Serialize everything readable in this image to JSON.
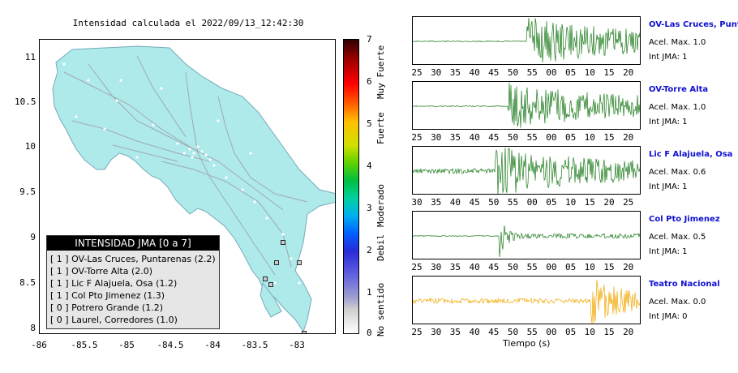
{
  "map": {
    "title": "Intensidad calculada el 2022/09/13_12:42:30",
    "y_ticks": [
      "11",
      "10.5",
      "10",
      "9.5",
      "9",
      "8.5",
      "8"
    ],
    "x_ticks": [
      "-86",
      "-85.5",
      "-85",
      "-84.5",
      "-84",
      "-83.5",
      "-83"
    ],
    "land_color": "#aeeaea",
    "road_color": "#a0a8b0"
  },
  "legend": {
    "header": "INTENSIDAD JMA [0 a 7]",
    "items": [
      "[ 1 ]  OV-Las Cruces, Puntarenas (2.2)",
      "[ 1 ]  OV-Torre Alta (2.0)",
      "[ 1 ]  Lic F Alajuela, Osa (1.2)",
      "[ 1 ]  Col Pto Jimenez (1.3)",
      "[ 0 ]  Potrero Grande (1.2)",
      "[ 0 ]  Laurel, Corredores (1.0)"
    ]
  },
  "colorbar": {
    "ticks": [
      "7",
      "6",
      "5",
      "4",
      "3",
      "2",
      "1",
      "0"
    ],
    "words": [
      "Muy Fuerte",
      "Fuerte",
      "Moderado",
      "Debil",
      "No sentido"
    ]
  },
  "traces": [
    {
      "name": "OV-Las Cruces, Puntar",
      "acel": "Acel. Max. 1.0",
      "int": "Int JMA: 1",
      "color": "#1a7a1a",
      "ticks": [
        "25",
        "30",
        "35",
        "40",
        "45",
        "50",
        "55",
        "00",
        "05",
        "10",
        "15",
        "20"
      ],
      "onset": 0.5
    },
    {
      "name": "OV-Torre Alta",
      "acel": "Acel. Max. 1.0",
      "int": "Int JMA: 1",
      "color": "#1a7a1a",
      "ticks": [
        "25",
        "30",
        "35",
        "40",
        "45",
        "50",
        "55",
        "00",
        "05",
        "10",
        "15",
        "20"
      ],
      "onset": 0.42
    },
    {
      "name": "Lic F Alajuela, Osa",
      "acel": "Acel. Max. 0.6",
      "int": "Int JMA: 1",
      "color": "#1a7a1a",
      "ticks": [
        "30",
        "35",
        "40",
        "45",
        "50",
        "55",
        "00",
        "05",
        "10",
        "15",
        "20",
        "25"
      ],
      "onset": 0.36
    },
    {
      "name": "Col Pto Jimenez",
      "acel": "Acel. Max. 0.5",
      "int": "Int JMA: 1",
      "color": "#1a7a1a",
      "ticks": [
        "25",
        "30",
        "35",
        "40",
        "45",
        "50",
        "55",
        "00",
        "05",
        "10",
        "15",
        "20"
      ],
      "onset": 0.38
    },
    {
      "name": "Teatro Nacional",
      "acel": "Acel. Max. 0.0",
      "int": "Int JMA: 0",
      "color": "#f0a800",
      "ticks": [
        "25",
        "30",
        "35",
        "40",
        "45",
        "50",
        "55",
        "00",
        "05",
        "10",
        "15",
        "20"
      ],
      "onset": 0.78
    }
  ],
  "xlabel": "Tiempo (s)"
}
